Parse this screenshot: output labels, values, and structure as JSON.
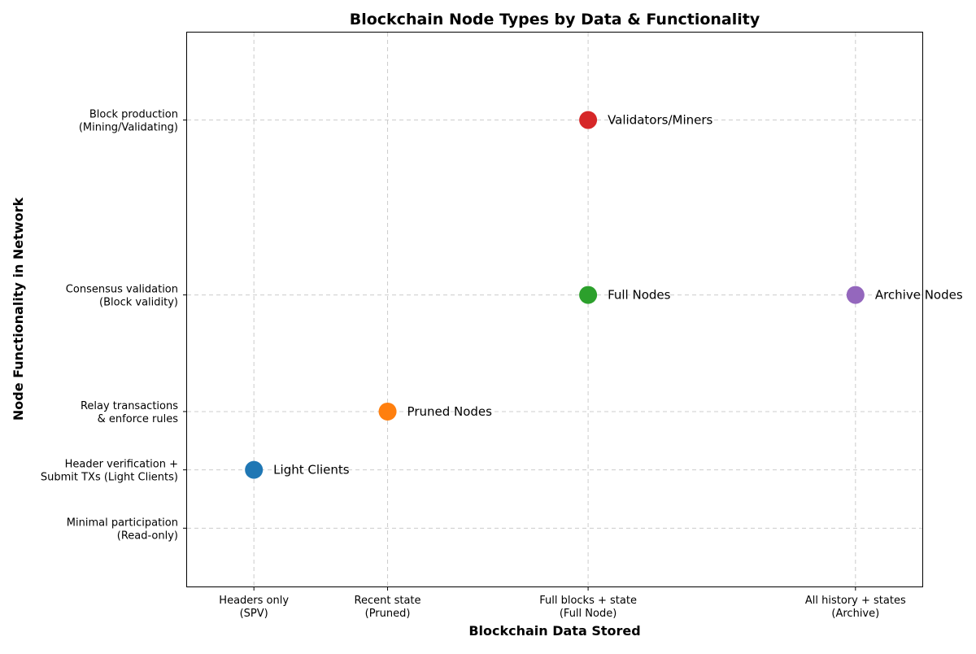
{
  "chart_data": {
    "type": "scatter",
    "title": "Blockchain Node Types by Data & Functionality",
    "xlabel": "Blockchain Data Stored",
    "ylabel": "Node Functionality in Network",
    "xlim": [
      0.5,
      6.0
    ],
    "ylim": [
      0.0,
      9.5
    ],
    "grid": true,
    "x_ticks": [
      {
        "value": 1,
        "lines": [
          "Headers only",
          "(SPV)"
        ]
      },
      {
        "value": 2,
        "lines": [
          "Recent state",
          "(Pruned)"
        ]
      },
      {
        "value": 3.5,
        "lines": [
          "Full blocks + state",
          "(Full Node)"
        ]
      },
      {
        "value": 5.5,
        "lines": [
          "All history + states",
          "(Archive)"
        ]
      }
    ],
    "y_ticks": [
      {
        "value": 1,
        "lines": [
          "Minimal participation",
          "(Read-only)"
        ]
      },
      {
        "value": 2,
        "lines": [
          "Header verification +",
          "Submit TXs (Light Clients)"
        ]
      },
      {
        "value": 3,
        "lines": [
          "Relay transactions",
          "& enforce rules"
        ]
      },
      {
        "value": 5,
        "lines": [
          "Consensus validation",
          "(Block validity)"
        ]
      },
      {
        "value": 8,
        "lines": [
          "Block production",
          "(Mining/Validating)"
        ]
      }
    ],
    "points": [
      {
        "label": "Light Clients",
        "x": 1,
        "y": 2,
        "color": "#1f77b4"
      },
      {
        "label": "Pruned Nodes",
        "x": 2,
        "y": 3,
        "color": "#ff7f0e"
      },
      {
        "label": "Full Nodes",
        "x": 3.5,
        "y": 5,
        "color": "#2ca02c"
      },
      {
        "label": "Validators/Miners",
        "x": 3.5,
        "y": 8,
        "color": "#d62728"
      },
      {
        "label": "Archive Nodes",
        "x": 5.5,
        "y": 5,
        "color": "#9467bd"
      }
    ]
  }
}
